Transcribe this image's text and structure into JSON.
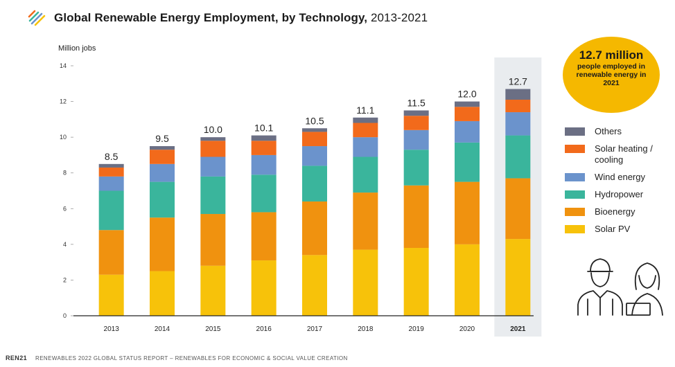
{
  "header": {
    "title": "Global Renewable Energy Employment, by Technology,",
    "years": "2013-2021"
  },
  "footer": {
    "brand": "REN21",
    "text": "RENEWABLES 2022 GLOBAL STATUS REPORT – RENEWABLES FOR ECONOMIC & SOCIAL VALUE CREATION"
  },
  "callout": {
    "headline": "12.7 million",
    "text": "people employed in renewable energy in 2021"
  },
  "colors": {
    "Solar PV": "#f7c20a",
    "Bioenergy": "#f0920f",
    "Hydropower": "#3ab59c",
    "Wind energy": "#6b93cc",
    "Solar heating / cooling": "#f26a1b",
    "Others": "#6b6f84",
    "highlight": "#e9ecef",
    "callout": "#f5b800"
  },
  "chart_data": {
    "type": "bar",
    "stacked": true,
    "ylabel": "Million jobs",
    "ylim": [
      0,
      14
    ],
    "yticks": [
      0,
      2,
      4,
      6,
      8,
      10,
      12,
      14
    ],
    "grid": false,
    "highlight_category": "2021",
    "categories": [
      "2013",
      "2014",
      "2015",
      "2016",
      "2017",
      "2018",
      "2019",
      "2020",
      "2021"
    ],
    "totals": [
      "8.5",
      "9.5",
      "10.0",
      "10.1",
      "10.5",
      "11.1",
      "11.5",
      "12.0",
      "12.7"
    ],
    "series": [
      {
        "name": "Solar PV",
        "values": [
          2.3,
          2.5,
          2.8,
          3.1,
          3.4,
          3.7,
          3.8,
          4.0,
          4.3
        ]
      },
      {
        "name": "Bioenergy",
        "values": [
          2.5,
          3.0,
          2.9,
          2.7,
          3.0,
          3.2,
          3.5,
          3.5,
          3.4
        ]
      },
      {
        "name": "Hydropower",
        "values": [
          2.2,
          2.0,
          2.1,
          2.1,
          2.0,
          2.0,
          2.0,
          2.2,
          2.4
        ]
      },
      {
        "name": "Wind energy",
        "values": [
          0.8,
          1.0,
          1.1,
          1.1,
          1.1,
          1.1,
          1.1,
          1.2,
          1.3
        ]
      },
      {
        "name": "Solar heating / cooling",
        "values": [
          0.5,
          0.8,
          0.9,
          0.8,
          0.8,
          0.8,
          0.8,
          0.8,
          0.7
        ]
      },
      {
        "name": "Others",
        "values": [
          0.2,
          0.2,
          0.2,
          0.3,
          0.2,
          0.3,
          0.3,
          0.3,
          0.6
        ]
      }
    ]
  }
}
